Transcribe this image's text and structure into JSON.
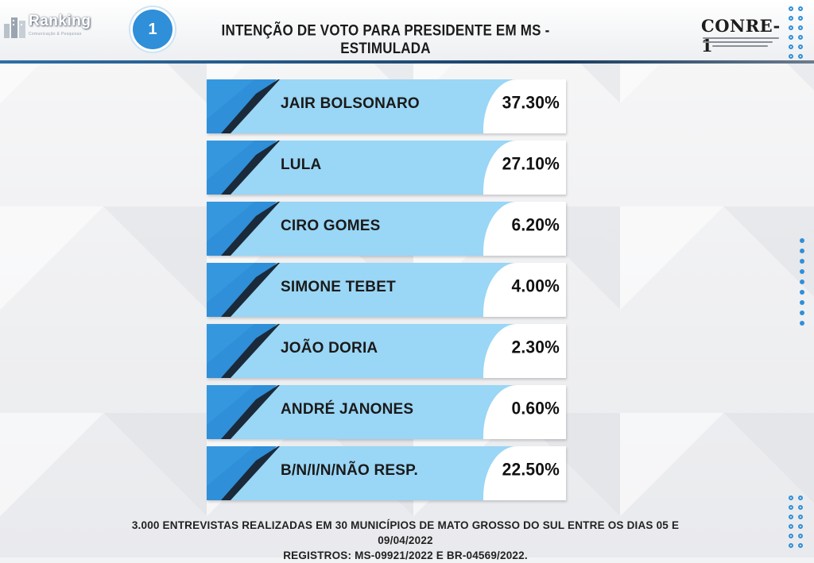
{
  "header": {
    "logo_left": "Ranking",
    "logo_left_sub": "Comunicação & Pesquisas",
    "badge": "1",
    "title": "INTENÇÃO DE VOTO PARA PRESIDENTE EM MS - ESTIMULADA",
    "logo_right": "CONRE-1"
  },
  "colors": {
    "bar_light": "#9ad6f5",
    "accent_blue": "#2f8fd8",
    "accent_dark": "#1a2a3a",
    "value_bg": "#ffffff"
  },
  "chart_data": {
    "type": "table",
    "categories": [
      "JAIR BOLSONARO",
      "LULA",
      "CIRO GOMES",
      "SIMONE TEBET",
      "JOÃO DORIA",
      "ANDRÉ JANONES",
      "B/N/I/N/NÃO RESP."
    ],
    "values": [
      37.3,
      27.1,
      6.2,
      4.0,
      2.3,
      0.6,
      22.5
    ],
    "value_labels": [
      "37.30%",
      "27.10%",
      "6.20%",
      "4.00%",
      "2.30%",
      "0.60%",
      "22.50%"
    ],
    "title": "INTENÇÃO DE VOTO PARA PRESIDENTE EM MS - ESTIMULADA"
  },
  "footer": {
    "line1": "3.000 ENTREVISTAS REALIZADAS EM 30 MUNICÍPIOS DE MATO GROSSO DO SUL ENTRE OS DIAS 05 E 09/04/2022",
    "line2": "REGISTROS: MS-09921/2022 E BR-04569/2022."
  }
}
